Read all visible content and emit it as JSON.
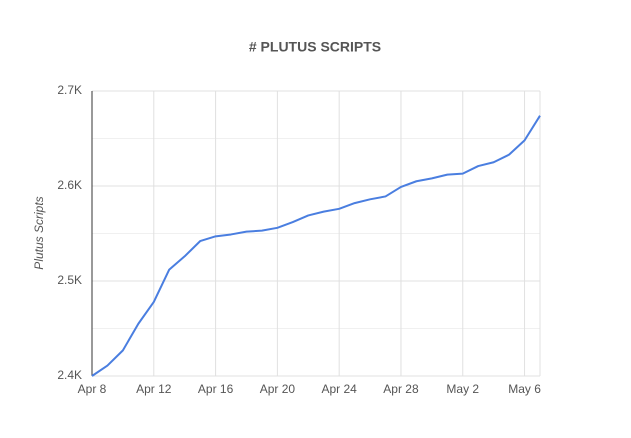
{
  "chart_data": {
    "type": "line",
    "title": "# PLUTUS SCRIPTS",
    "y_label": "Plutus Scripts",
    "categories": [
      "Apr 8",
      null,
      null,
      null,
      "Apr 12",
      null,
      null,
      null,
      "Apr 16",
      null,
      null,
      null,
      "Apr 20",
      null,
      null,
      null,
      "Apr 24",
      null,
      null,
      null,
      "Apr 28",
      null,
      null,
      null,
      "May 2",
      null,
      null,
      null,
      "May 6",
      null
    ],
    "series": [
      {
        "name": "Plutus Scripts",
        "color": "#4a7ee0",
        "values": [
          2400,
          2411,
          2427,
          2455,
          2478,
          2512,
          2526,
          2542,
          2547,
          2549,
          2552,
          2553,
          2556,
          2562,
          2569,
          2573,
          2576,
          2582,
          2586,
          2589,
          2599,
          2605,
          2608,
          2612,
          2613,
          2621,
          2625,
          2633,
          2648,
          2674
        ]
      }
    ],
    "ylim": [
      2400,
      2700
    ],
    "yticks": [
      {
        "value": 2400,
        "label": "2.4K"
      },
      {
        "value": 2500,
        "label": "2.5K"
      },
      {
        "value": 2600,
        "label": "2.6K"
      },
      {
        "value": 2700,
        "label": "2.7K"
      }
    ],
    "y_minor_ticks": [
      2450,
      2550,
      2650
    ],
    "grid": true
  }
}
